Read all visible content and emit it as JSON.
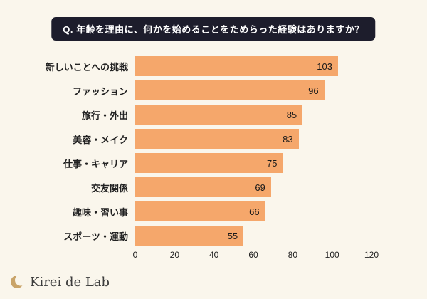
{
  "page": {
    "background": "#faf6ec"
  },
  "question_banner": {
    "text": "Q. 年齢を理由に、何かを始めることをためらった経験はありますか？",
    "bg": "#1d1d2c",
    "color": "#ffffff"
  },
  "chart_data": {
    "type": "bar",
    "orientation": "horizontal",
    "title": "",
    "categories": [
      "新しいことへの挑戦",
      "ファッション",
      "旅行・外出",
      "美容・メイク",
      "仕事・キャリア",
      "交友関係",
      "趣味・習い事",
      "スポーツ・運動"
    ],
    "values": [
      103,
      96,
      85,
      83,
      75,
      69,
      66,
      55
    ],
    "xlim": [
      0,
      120
    ],
    "x_ticks": [
      "0",
      "20",
      "40",
      "60",
      "80",
      "100",
      "120"
    ],
    "bar_color": "#f5a76b",
    "value_label_color": "#1a1a1a",
    "grid": false,
    "legend": "none"
  },
  "logo": {
    "text": "Kirei de Lab",
    "icon": "crescent-moon-icon",
    "text_color": "#3d3d3d",
    "icon_color": "#c9a469"
  }
}
